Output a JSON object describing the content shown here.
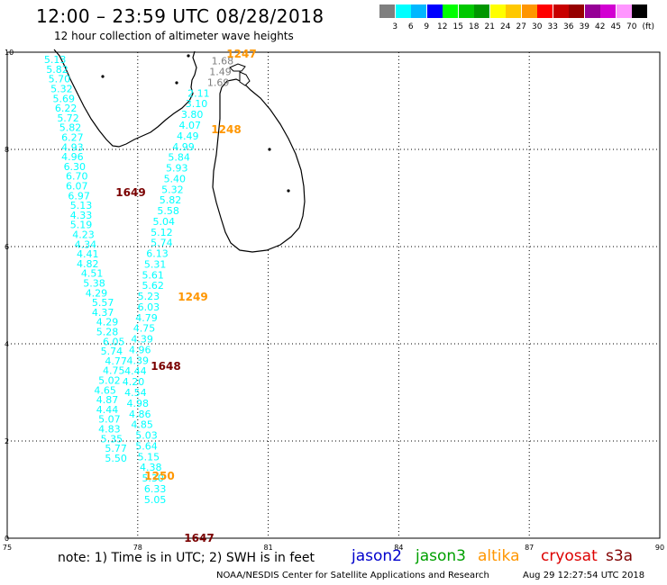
{
  "header": {
    "title": "12:00 – 23:59 UTC 08/28/2018",
    "subtitle": "12 hour collection of altimeter wave heights"
  },
  "scale": {
    "colors": [
      "#7f7f7f",
      "#00ffff",
      "#00b7ff",
      "#0000ff",
      "#00ff00",
      "#00c800",
      "#009600",
      "#ffff00",
      "#ffc800",
      "#ff9600",
      "#ff0000",
      "#c80000",
      "#960000",
      "#960096",
      "#d200d2",
      "#ff96ff",
      "#000000"
    ],
    "labels": [
      "3",
      "6",
      "9",
      "12",
      "15",
      "18",
      "21",
      "24",
      "27",
      "30",
      "33",
      "36",
      "39",
      "42",
      "45",
      "70"
    ],
    "unit": "(ft)"
  },
  "axes": {
    "x_ticks": [
      "75",
      "78",
      "81",
      "84",
      "87",
      "90"
    ],
    "y_ticks": [
      "0",
      "2",
      "4",
      "6",
      "8",
      "10"
    ],
    "lon_range": [
      75,
      90
    ],
    "lat_range": [
      0,
      10
    ]
  },
  "track_labels": [
    {
      "text": "1247",
      "color": "#ff9600"
    },
    {
      "text": "1248",
      "color": "#ff9600"
    },
    {
      "text": "1649",
      "color": "#7a0000"
    },
    {
      "text": "1249",
      "color": "#ff9600"
    },
    {
      "text": "1648",
      "color": "#7a0000"
    },
    {
      "text": "1250",
      "color": "#ff9600"
    },
    {
      "text": "1647",
      "color": "#7a0000"
    }
  ],
  "wave_heights": {
    "color": "#00ffff",
    "gray_color": "#7f7f7f",
    "track_west": [
      [
        "76.1",
        "9.85",
        "5.13"
      ],
      [
        "76.15",
        "9.65",
        "5.82"
      ],
      [
        "76.2",
        "9.45",
        "5.70"
      ],
      [
        "76.25",
        "9.25",
        "5.32"
      ],
      [
        "76.3",
        "9.05",
        "5.69"
      ],
      [
        "76.35",
        "8.85",
        "6.22"
      ],
      [
        "76.4",
        "8.65",
        "5.72"
      ],
      [
        "76.45",
        "8.45",
        "5.82"
      ],
      [
        "76.5",
        "8.25",
        "6.27"
      ],
      [
        "76.5",
        "8.05",
        "4.93"
      ],
      [
        "76.5",
        "7.85",
        "4.96"
      ],
      [
        "76.55",
        "7.65",
        "6.30"
      ],
      [
        "76.6",
        "7.45",
        "6.70"
      ],
      [
        "76.6",
        "7.25",
        "6.07"
      ],
      [
        "76.65",
        "7.05",
        "6.97"
      ],
      [
        "76.7",
        "6.85",
        "5.13"
      ],
      [
        "76.7",
        "6.65",
        "4.33"
      ],
      [
        "76.7",
        "6.45",
        "5.19"
      ],
      [
        "76.75",
        "6.25",
        "4.23"
      ],
      [
        "76.8",
        "6.05",
        "4.34"
      ],
      [
        "76.85",
        "5.85",
        "4.41"
      ],
      [
        "76.85",
        "5.65",
        "4.82"
      ],
      [
        "76.95",
        "5.45",
        "4.51"
      ],
      [
        "77.0",
        "5.25",
        "5.38"
      ],
      [
        "77.05",
        "5.05",
        "4.29"
      ],
      [
        "77.2",
        "4.85",
        "5.57"
      ],
      [
        "77.2",
        "4.65",
        "4.37"
      ],
      [
        "77.3",
        "4.45",
        "4.29"
      ],
      [
        "77.3",
        "4.25",
        "5.28"
      ],
      [
        "77.45",
        "4.05",
        "6.05"
      ],
      [
        "77.4",
        "3.85",
        "5.74"
      ],
      [
        "77.5",
        "3.65",
        "4.77"
      ],
      [
        "77.45",
        "3.45",
        "4.75"
      ],
      [
        "77.35",
        "3.25",
        "5.02"
      ],
      [
        "77.25",
        "3.05",
        "4.65"
      ],
      [
        "77.3",
        "2.85",
        "4.87"
      ],
      [
        "77.3",
        "2.65",
        "4.44"
      ],
      [
        "77.35",
        "2.45",
        "5.07"
      ],
      [
        "77.35",
        "2.25",
        "4.83"
      ],
      [
        "77.4",
        "2.05",
        "5.35"
      ],
      [
        "77.5",
        "1.85",
        "5.77"
      ],
      [
        "77.5",
        "1.65",
        "5.50"
      ]
    ],
    "track_east_gray": [
      [
        "79.95",
        "9.82",
        "1.68"
      ],
      [
        "79.9",
        "9.6",
        "1.49"
      ],
      [
        "79.85",
        "9.38",
        "1.69"
      ]
    ],
    "track_east": [
      [
        "79.4",
        "9.16",
        "2.11"
      ],
      [
        "79.35",
        "8.94",
        "3.10"
      ],
      [
        "79.25",
        "8.72",
        "3.80"
      ],
      [
        "79.2",
        "8.5",
        "4.07"
      ],
      [
        "79.15",
        "8.28",
        "4.49"
      ],
      [
        "79.05",
        "8.06",
        "4.99"
      ],
      [
        "78.95",
        "7.84",
        "5.84"
      ],
      [
        "78.9",
        "7.62",
        "5.93"
      ],
      [
        "78.85",
        "7.4",
        "5.40"
      ],
      [
        "78.8",
        "7.18",
        "5.32"
      ],
      [
        "78.75",
        "6.96",
        "5.82"
      ],
      [
        "78.7",
        "6.74",
        "5.58"
      ],
      [
        "78.6",
        "6.52",
        "5.04"
      ],
      [
        "78.55",
        "6.3",
        "5.12"
      ],
      [
        "78.55",
        "6.08",
        "5.74"
      ],
      [
        "78.45",
        "5.86",
        "6.13"
      ],
      [
        "78.4",
        "5.64",
        "5.31"
      ],
      [
        "78.35",
        "5.42",
        "5.61"
      ],
      [
        "78.35",
        "5.2",
        "5.62"
      ],
      [
        "78.25",
        "4.98",
        "5.23"
      ],
      [
        "78.25",
        "4.76",
        "6.03"
      ],
      [
        "78.2",
        "4.54",
        "4.79"
      ],
      [
        "78.15",
        "4.32",
        "4.75"
      ],
      [
        "78.1",
        "4.1",
        "4.39"
      ],
      [
        "78.05",
        "3.88",
        "4.96"
      ],
      [
        "78.0",
        "3.66",
        "4.39"
      ],
      [
        "77.95",
        "3.44",
        "4.44"
      ],
      [
        "77.9",
        "3.22",
        "4.20"
      ],
      [
        "77.95",
        "3.0",
        "4.54"
      ],
      [
        "78.0",
        "2.78",
        "4.98"
      ],
      [
        "78.05",
        "2.56",
        "4.86"
      ],
      [
        "78.1",
        "2.34",
        "4.85"
      ],
      [
        "78.2",
        "2.12",
        "5.03"
      ],
      [
        "78.2",
        "1.9",
        "5.64"
      ],
      [
        "78.25",
        "1.68",
        "5.15"
      ],
      [
        "78.3",
        "1.46",
        "4.38"
      ],
      [
        "78.35",
        "1.24",
        "5.30"
      ],
      [
        "78.4",
        "1.02",
        "6.33"
      ],
      [
        "78.4",
        "0.8",
        "5.05"
      ]
    ]
  },
  "note": "note: 1) Time is in UTC; 2) SWH is in feet",
  "satellites": [
    {
      "name": "jason2",
      "color": "#0000cc"
    },
    {
      "name": "jason3",
      "color": "#00a000"
    },
    {
      "name": "altika",
      "color": "#ff9600"
    },
    {
      "name": "cryosat",
      "color": "#dd0000"
    },
    {
      "name": "s3a",
      "color": "#800000"
    }
  ],
  "footer": {
    "credit": "NOAA/NESDIS Center for Satellite Applications and Research",
    "timestamp": "Aug 29 12:27:54 UTC 2018"
  }
}
